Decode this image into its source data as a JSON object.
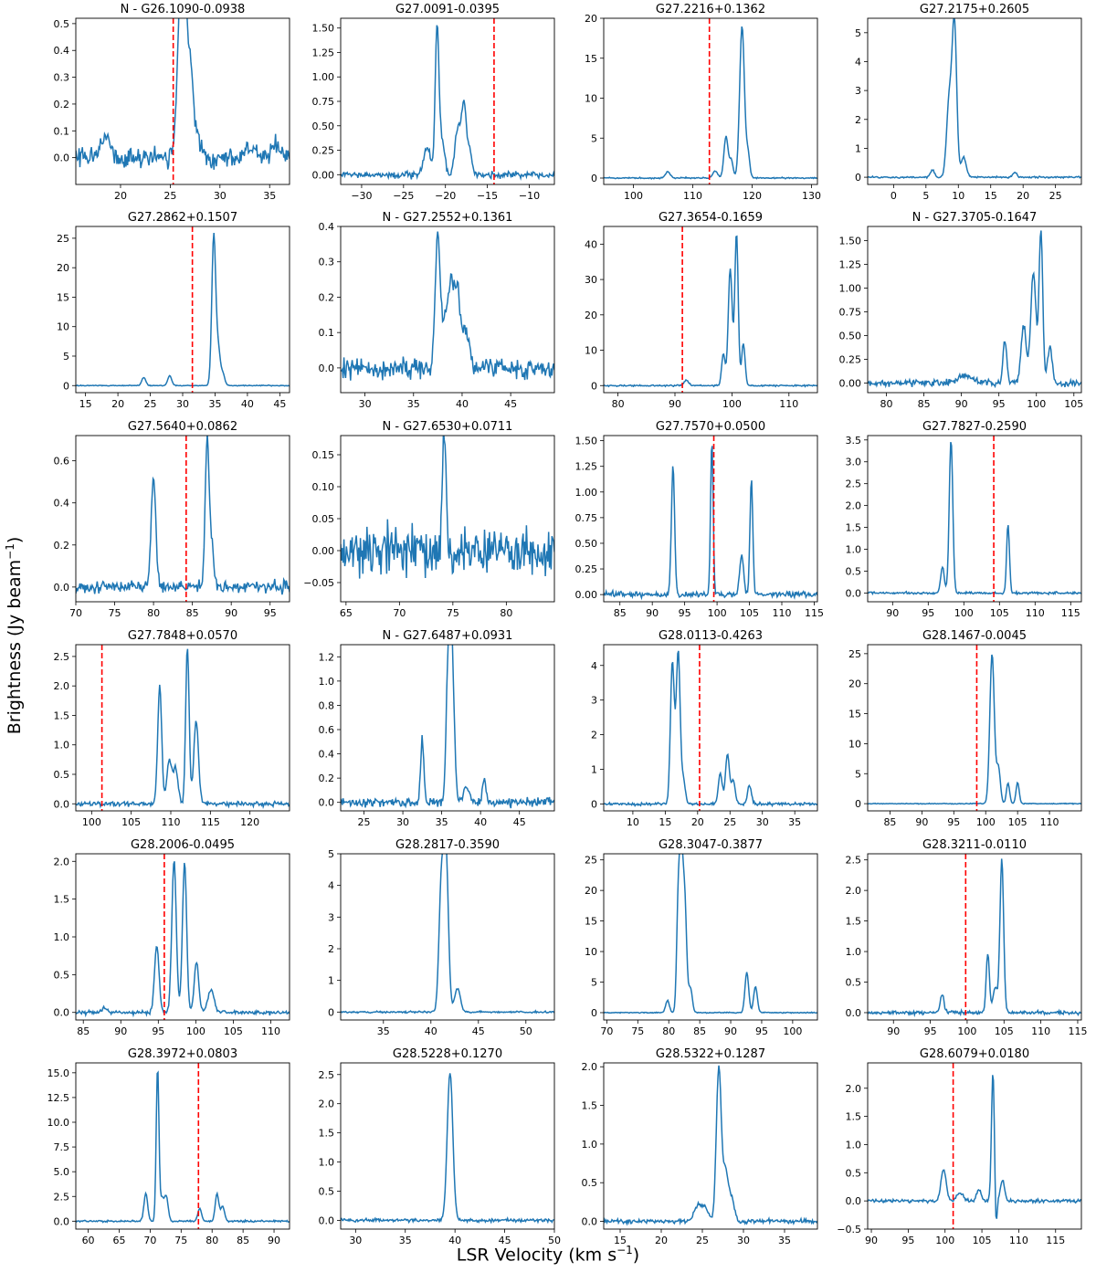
{
  "figure": {
    "xlabel": "LSR Velocity (km s",
    "xlabel_sup": "−1",
    "xlabel_end": ")",
    "ylabel": "Brightness (Jy beam",
    "ylabel_sup": "−1",
    "ylabel_end": ")",
    "colors": {
      "spectrum": "#1f77b4",
      "marker": "#ff0000"
    }
  },
  "chart_data": [
    {
      "type": "line",
      "title": "N - G26.1090-0.0938",
      "xlim": [
        15.5,
        37
      ],
      "ylim": [
        -0.1,
        0.52
      ],
      "xticks": [
        20,
        25,
        30,
        35
      ],
      "yticks": [
        0,
        0.1,
        0.2,
        0.3,
        0.4,
        0.5
      ],
      "yfmt": 1,
      "vline": 25.3,
      "peaks": [
        [
          18.5,
          0.07,
          0.5
        ],
        [
          26.0,
          0.48,
          0.35
        ],
        [
          26.4,
          0.44,
          0.3
        ],
        [
          27.0,
          0.31,
          0.3
        ],
        [
          27.7,
          0.08,
          0.4
        ],
        [
          33.0,
          0.03,
          0.5
        ],
        [
          35.6,
          0.04,
          0.5
        ]
      ],
      "noise": 0.025,
      "seed": 1
    },
    {
      "type": "line",
      "title": "G27.0091-0.0395",
      "xlim": [
        -32.5,
        -7
      ],
      "ylim": [
        -0.1,
        1.6
      ],
      "xticks": [
        -30,
        -25,
        -20,
        -15,
        -10
      ],
      "yticks": [
        0,
        0.25,
        0.5,
        0.75,
        1,
        1.25,
        1.5
      ],
      "yfmt": 2,
      "vline": -14.2,
      "peaks": [
        [
          -22.2,
          0.28,
          0.4
        ],
        [
          -21.0,
          1.52,
          0.22
        ],
        [
          -20.4,
          0.35,
          0.3
        ],
        [
          -18.5,
          0.5,
          0.35
        ],
        [
          -17.8,
          0.65,
          0.25
        ],
        [
          -17.2,
          0.3,
          0.3
        ]
      ],
      "noise": 0.025,
      "seed": 2
    },
    {
      "type": "line",
      "title": "G27.2216+0.1362",
      "xlim": [
        95,
        131
      ],
      "ylim": [
        -0.8,
        20
      ],
      "xticks": [
        100,
        110,
        120,
        130
      ],
      "yticks": [
        0,
        5,
        10,
        15,
        20
      ],
      "yfmt": 0,
      "vline": 112.8,
      "peaks": [
        [
          105.8,
          0.8,
          0.4
        ],
        [
          113.8,
          0.9,
          0.4
        ],
        [
          115.6,
          5.2,
          0.35
        ],
        [
          116.5,
          2.2,
          0.3
        ],
        [
          118.3,
          19,
          0.4
        ],
        [
          119.3,
          3,
          0.3
        ]
      ],
      "noise": 0.06,
      "seed": 3
    },
    {
      "type": "line",
      "title": "G27.2175+0.2605",
      "xlim": [
        -4,
        29
      ],
      "ylim": [
        -0.25,
        5.5
      ],
      "xticks": [
        0,
        5,
        10,
        15,
        20,
        25
      ],
      "yticks": [
        0,
        1,
        2,
        3,
        4,
        5
      ],
      "yfmt": 0,
      "vline": null,
      "peaks": [
        [
          6.0,
          0.25,
          0.3
        ],
        [
          8.6,
          2.7,
          0.4
        ],
        [
          9.4,
          5.2,
          0.35
        ],
        [
          10.8,
          0.7,
          0.4
        ],
        [
          18.7,
          0.18,
          0.3
        ]
      ],
      "noise": 0.02,
      "seed": 4
    },
    {
      "type": "line",
      "title": "G27.2862+0.1507",
      "xlim": [
        13.5,
        46.5
      ],
      "ylim": [
        -1.2,
        27
      ],
      "xticks": [
        15,
        20,
        25,
        30,
        35,
        40,
        45
      ],
      "yticks": [
        0,
        5,
        10,
        15,
        20,
        25
      ],
      "yfmt": 0,
      "vline": 31.5,
      "peaks": [
        [
          24.0,
          1.4,
          0.3
        ],
        [
          28.0,
          1.7,
          0.3
        ],
        [
          34.8,
          25.5,
          0.3
        ],
        [
          35.5,
          6,
          0.3
        ],
        [
          36.2,
          2,
          0.3
        ]
      ],
      "noise": 0.05,
      "seed": 5
    },
    {
      "type": "line",
      "title": "N - G27.2552+0.1361",
      "xlim": [
        27.5,
        49.5
      ],
      "ylim": [
        -0.07,
        0.4
      ],
      "xticks": [
        30,
        35,
        40,
        45
      ],
      "yticks": [
        0,
        0.1,
        0.2,
        0.3,
        0.4
      ],
      "yfmt": 1,
      "vline": null,
      "peaks": [
        [
          37.5,
          0.38,
          0.25
        ],
        [
          38.3,
          0.15,
          0.3
        ],
        [
          38.9,
          0.22,
          0.25
        ],
        [
          39.5,
          0.22,
          0.25
        ],
        [
          40.3,
          0.1,
          0.4
        ]
      ],
      "noise": 0.02,
      "seed": 6
    },
    {
      "type": "line",
      "title": "G27.3654-0.1659",
      "xlim": [
        77.5,
        115
      ],
      "ylim": [
        -2,
        45
      ],
      "xticks": [
        80,
        90,
        100,
        110
      ],
      "yticks": [
        0,
        10,
        20,
        30,
        40
      ],
      "yfmt": 0,
      "vline": 91.3,
      "peaks": [
        [
          92.0,
          1.5,
          0.4
        ],
        [
          98.5,
          9,
          0.3
        ],
        [
          99.7,
          33,
          0.35
        ],
        [
          100.8,
          43,
          0.3
        ],
        [
          102.0,
          12,
          0.3
        ]
      ],
      "noise": 0.15,
      "seed": 7
    },
    {
      "type": "line",
      "title": "N - G27.3705-0.1647",
      "xlim": [
        77.5,
        106
      ],
      "ylim": [
        -0.1,
        1.65
      ],
      "xticks": [
        80,
        85,
        90,
        95,
        100,
        105
      ],
      "yticks": [
        0,
        0.25,
        0.5,
        0.75,
        1,
        1.25,
        1.5
      ],
      "yfmt": 2,
      "vline": null,
      "peaks": [
        [
          90.5,
          0.07,
          1.2
        ],
        [
          95.8,
          0.45,
          0.25
        ],
        [
          98.3,
          0.6,
          0.35
        ],
        [
          99.6,
          1.15,
          0.35
        ],
        [
          100.6,
          1.6,
          0.25
        ],
        [
          101.8,
          0.4,
          0.3
        ]
      ],
      "noise": 0.025,
      "seed": 8
    },
    {
      "type": "line",
      "title": "G27.5640+0.0862",
      "xlim": [
        70,
        97.5
      ],
      "ylim": [
        -0.07,
        0.72
      ],
      "xticks": [
        70,
        75,
        80,
        85,
        90,
        95
      ],
      "yticks": [
        0,
        0.2,
        0.4,
        0.6
      ],
      "yfmt": 1,
      "vline": 84.2,
      "peaks": [
        [
          80.0,
          0.52,
          0.3
        ],
        [
          86.9,
          0.7,
          0.25
        ],
        [
          87.5,
          0.2,
          0.25
        ]
      ],
      "noise": 0.02,
      "seed": 9
    },
    {
      "type": "line",
      "title": "N - G27.6530+0.0711",
      "xlim": [
        64.5,
        84.5
      ],
      "ylim": [
        -0.08,
        0.18
      ],
      "xticks": [
        65,
        70,
        75,
        80
      ],
      "yticks": [
        -0.05,
        0,
        0.05,
        0.1,
        0.15
      ],
      "yfmt": 2,
      "vline": null,
      "peaks": [
        [
          74.2,
          0.18,
          0.18
        ]
      ],
      "noise": 0.025,
      "seed": 10
    },
    {
      "type": "line",
      "title": "G27.7570+0.0500",
      "xlim": [
        82.5,
        115.5
      ],
      "ylim": [
        -0.07,
        1.55
      ],
      "xticks": [
        85,
        90,
        95,
        100,
        105,
        110,
        115
      ],
      "yticks": [
        0,
        0.25,
        0.5,
        0.75,
        1,
        1.25,
        1.5
      ],
      "yfmt": 2,
      "vline": 99.5,
      "peaks": [
        [
          93.2,
          1.25,
          0.25
        ],
        [
          99.2,
          1.5,
          0.2
        ],
        [
          103.8,
          0.38,
          0.3
        ],
        [
          105.3,
          1.12,
          0.22
        ]
      ],
      "noise": 0.02,
      "seed": 11
    },
    {
      "type": "line",
      "title": "G27.7827-0.2590",
      "xlim": [
        86.5,
        116.5
      ],
      "ylim": [
        -0.2,
        3.6
      ],
      "xticks": [
        90,
        95,
        100,
        105,
        110,
        115
      ],
      "yticks": [
        0,
        0.5,
        1,
        1.5,
        2,
        2.5,
        3,
        3.5
      ],
      "yfmt": 1,
      "vline": 104.2,
      "peaks": [
        [
          97.0,
          0.6,
          0.25
        ],
        [
          98.2,
          3.5,
          0.25
        ],
        [
          106.2,
          1.55,
          0.2
        ]
      ],
      "noise": 0.02,
      "seed": 12
    },
    {
      "type": "line",
      "title": "G27.7848+0.0570",
      "xlim": [
        98,
        125
      ],
      "ylim": [
        -0.12,
        2.7
      ],
      "xticks": [
        100,
        105,
        110,
        115,
        120
      ],
      "yticks": [
        0,
        0.5,
        1,
        1.5,
        2,
        2.5
      ],
      "yfmt": 1,
      "vline": 101.3,
      "peaks": [
        [
          108.6,
          2.0,
          0.25
        ],
        [
          109.8,
          0.75,
          0.3
        ],
        [
          110.6,
          0.6,
          0.3
        ],
        [
          112.1,
          2.65,
          0.22
        ],
        [
          113.2,
          1.4,
          0.3
        ]
      ],
      "noise": 0.03,
      "seed": 13
    },
    {
      "type": "line",
      "title": "N - G27.6487+0.0931",
      "xlim": [
        22,
        49.5
      ],
      "ylim": [
        -0.07,
        1.3
      ],
      "xticks": [
        25,
        30,
        35,
        40,
        45
      ],
      "yticks": [
        0,
        0.2,
        0.4,
        0.6,
        0.8,
        1,
        1.2
      ],
      "yfmt": 1,
      "vline": null,
      "peaks": [
        [
          32.5,
          0.52,
          0.2
        ],
        [
          35.8,
          0.95,
          0.25
        ],
        [
          36.3,
          1.25,
          0.3
        ],
        [
          38.2,
          0.12,
          0.4
        ],
        [
          40.5,
          0.2,
          0.2
        ]
      ],
      "noise": 0.025,
      "seed": 14
    },
    {
      "type": "line",
      "title": "G28.0113-0.4263",
      "xlim": [
        5.5,
        38.5
      ],
      "ylim": [
        -0.2,
        4.6
      ],
      "xticks": [
        10,
        15,
        20,
        25,
        30,
        35
      ],
      "yticks": [
        0,
        1,
        2,
        3,
        4
      ],
      "yfmt": 0,
      "vline": 20.3,
      "peaks": [
        [
          16.1,
          4.1,
          0.3
        ],
        [
          17.0,
          4.4,
          0.3
        ],
        [
          17.8,
          0.7,
          0.3
        ],
        [
          23.5,
          0.9,
          0.3
        ],
        [
          24.6,
          1.45,
          0.3
        ],
        [
          25.5,
          0.7,
          0.3
        ],
        [
          28.0,
          0.55,
          0.3
        ]
      ],
      "noise": 0.03,
      "seed": 15
    },
    {
      "type": "line",
      "title": "G28.1467-0.0045",
      "xlim": [
        81.5,
        115
      ],
      "ylim": [
        -1.2,
        26.5
      ],
      "xticks": [
        85,
        90,
        95,
        100,
        105,
        110
      ],
      "yticks": [
        0,
        5,
        10,
        15,
        20,
        25
      ],
      "yfmt": 0,
      "vline": 98.6,
      "peaks": [
        [
          101.0,
          25,
          0.35
        ],
        [
          102.0,
          6,
          0.3
        ],
        [
          103.5,
          3.5,
          0.25
        ],
        [
          105.0,
          3.5,
          0.25
        ]
      ],
      "noise": 0.05,
      "seed": 16
    },
    {
      "type": "line",
      "title": "G28.2006-0.0495",
      "xlim": [
        84,
        112.5
      ],
      "ylim": [
        -0.1,
        2.1
      ],
      "xticks": [
        85,
        90,
        95,
        100,
        105,
        110
      ],
      "yticks": [
        0,
        0.5,
        1,
        1.5,
        2
      ],
      "yfmt": 1,
      "vline": 95.8,
      "peaks": [
        [
          87.8,
          0.06,
          0.4
        ],
        [
          94.8,
          0.88,
          0.3
        ],
        [
          97.1,
          2.0,
          0.3
        ],
        [
          98.5,
          1.97,
          0.28
        ],
        [
          100.1,
          0.68,
          0.3
        ],
        [
          102.0,
          0.3,
          0.4
        ]
      ],
      "noise": 0.02,
      "seed": 17
    },
    {
      "type": "line",
      "title": "G28.2817-0.3590",
      "xlim": [
        30.5,
        53
      ],
      "ylim": [
        -0.25,
        5.0
      ],
      "xticks": [
        35,
        40,
        45,
        50
      ],
      "yticks": [
        0,
        1,
        2,
        3,
        4,
        5
      ],
      "yfmt": 0,
      "vline": null,
      "peaks": [
        [
          41.1,
          4.0,
          0.25
        ],
        [
          41.6,
          4.8,
          0.25
        ],
        [
          42.8,
          0.75,
          0.3
        ]
      ],
      "noise": 0.02,
      "seed": 18
    },
    {
      "type": "line",
      "title": "G28.3047-0.3877",
      "xlim": [
        69.5,
        104
      ],
      "ylim": [
        -1.2,
        26
      ],
      "xticks": [
        70,
        75,
        80,
        85,
        90,
        95,
        100
      ],
      "yticks": [
        0,
        5,
        10,
        15,
        20,
        25
      ],
      "yfmt": 0,
      "vline": null,
      "peaks": [
        [
          79.8,
          2.0,
          0.3
        ],
        [
          81.5,
          15,
          0.25
        ],
        [
          82.0,
          24.5,
          0.3
        ],
        [
          82.6,
          17,
          0.3
        ],
        [
          83.5,
          4,
          0.3
        ],
        [
          92.6,
          6.6,
          0.3
        ],
        [
          94.0,
          4.2,
          0.3
        ]
      ],
      "noise": 0.06,
      "seed": 19
    },
    {
      "type": "line",
      "title": "G28.3211-0.0110",
      "xlim": [
        86.5,
        115.5
      ],
      "ylim": [
        -0.12,
        2.6
      ],
      "xticks": [
        90,
        95,
        100,
        105,
        110,
        115
      ],
      "yticks": [
        0,
        0.5,
        1,
        1.5,
        2,
        2.5
      ],
      "yfmt": 1,
      "vline": 99.8,
      "peaks": [
        [
          96.6,
          0.3,
          0.25
        ],
        [
          102.8,
          0.98,
          0.22
        ],
        [
          103.8,
          0.42,
          0.3
        ],
        [
          104.7,
          2.5,
          0.25
        ]
      ],
      "noise": 0.02,
      "seed": 20
    },
    {
      "type": "line",
      "title": "G28.3972+0.0803",
      "xlim": [
        58,
        92.5
      ],
      "ylim": [
        -0.8,
        16
      ],
      "xticks": [
        60,
        65,
        70,
        75,
        80,
        85,
        90
      ],
      "yticks": [
        0,
        2.5,
        5,
        7.5,
        10,
        12.5,
        15
      ],
      "yfmt": 1,
      "vline": 77.8,
      "peaks": [
        [
          69.3,
          2.8,
          0.3
        ],
        [
          71.2,
          15.5,
          0.22
        ],
        [
          71.9,
          2.2,
          0.3
        ],
        [
          72.6,
          2.5,
          0.3
        ],
        [
          78.0,
          1.3,
          0.3
        ],
        [
          80.8,
          2.7,
          0.3
        ],
        [
          81.7,
          1.5,
          0.3
        ]
      ],
      "noise": 0.06,
      "seed": 21
    },
    {
      "type": "line",
      "title": "G28.5228+0.1270",
      "xlim": [
        28.5,
        50
      ],
      "ylim": [
        -0.15,
        2.7
      ],
      "xticks": [
        30,
        35,
        40,
        45,
        50
      ],
      "yticks": [
        0,
        0.5,
        1,
        1.5,
        2,
        2.5
      ],
      "yfmt": 1,
      "vline": null,
      "peaks": [
        [
          39.5,
          2.55,
          0.28
        ]
      ],
      "noise": 0.02,
      "seed": 22
    },
    {
      "type": "line",
      "title": "G28.5322+0.1287",
      "xlim": [
        13,
        39
      ],
      "ylim": [
        -0.1,
        2.05
      ],
      "xticks": [
        15,
        20,
        25,
        30,
        35
      ],
      "yticks": [
        0,
        0.5,
        1,
        1.5,
        2
      ],
      "yfmt": 1,
      "vline": null,
      "peaks": [
        [
          24.4,
          0.2,
          0.4
        ],
        [
          25.3,
          0.18,
          0.4
        ],
        [
          27.0,
          2.0,
          0.3
        ],
        [
          27.8,
          0.6,
          0.3
        ],
        [
          28.5,
          0.3,
          0.4
        ]
      ],
      "noise": 0.02,
      "seed": 23
    },
    {
      "type": "line",
      "title": "G28.6079+0.0180",
      "xlim": [
        89.5,
        118.5
      ],
      "ylim": [
        -0.5,
        2.45
      ],
      "xticks": [
        90,
        95,
        100,
        105,
        110,
        115
      ],
      "yticks": [
        -0.5,
        0,
        0.5,
        1,
        1.5,
        2
      ],
      "yfmt": 1,
      "vline": 101.1,
      "peaks": [
        [
          99.8,
          0.56,
          0.35
        ],
        [
          102.0,
          0.15,
          0.4
        ],
        [
          104.6,
          0.2,
          0.3
        ],
        [
          106.5,
          2.3,
          0.2
        ],
        [
          106.9,
          -0.55,
          0.15
        ],
        [
          107.8,
          0.35,
          0.3
        ]
      ],
      "noise": 0.02,
      "seed": 24
    }
  ]
}
